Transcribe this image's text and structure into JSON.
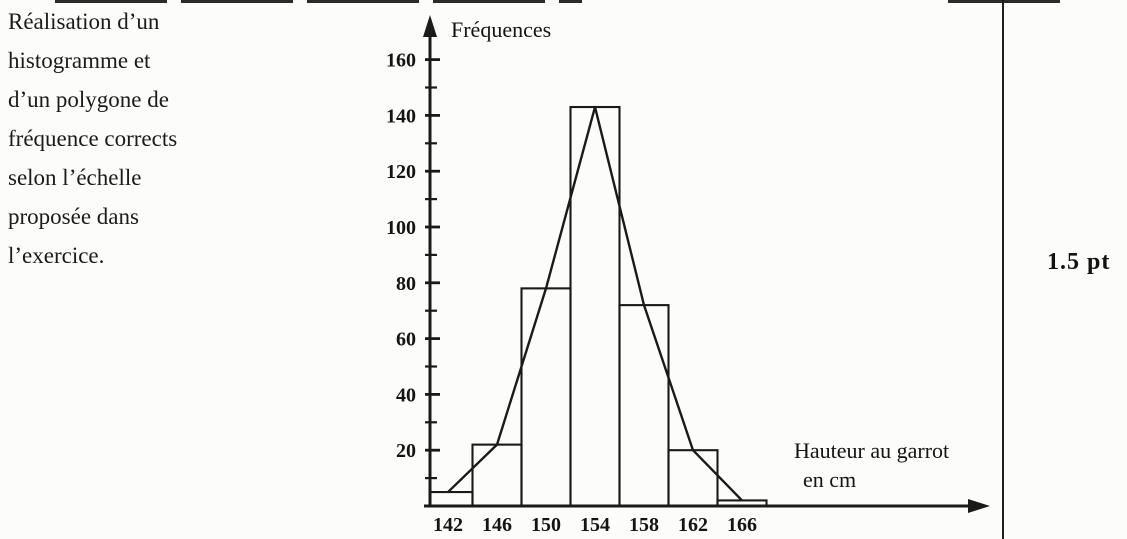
{
  "page": {
    "background": "#fcfcfa",
    "ink_color": "#1a1a1a"
  },
  "left_note": {
    "lines": [
      "Réalisation d’un",
      "histogramme et",
      "d’un polygone de",
      "fréquence corrects",
      "selon l’échelle",
      "proposée dans",
      "l’exercice."
    ]
  },
  "score": {
    "label": "1.5 pt"
  },
  "chart_data": {
    "type": "bar",
    "subtype": "histogram-with-frequency-polygon",
    "title": "",
    "ylabel": "Fréquences",
    "xlabel": "Hauteur au garrot en cm",
    "xlabel_lines": [
      "Hauteur au garrot",
      "en cm"
    ],
    "categories": [
      142,
      146,
      150,
      154,
      158,
      162,
      166
    ],
    "class_width": 4,
    "values": [
      5,
      22,
      78,
      143,
      72,
      20,
      2
    ],
    "polygon_points": [
      [
        142,
        5
      ],
      [
        146,
        22
      ],
      [
        150,
        78
      ],
      [
        154,
        143
      ],
      [
        158,
        72
      ],
      [
        162,
        20
      ],
      [
        166,
        2
      ]
    ],
    "y_tick_labels": [
      20,
      40,
      60,
      80,
      100,
      120,
      140,
      160
    ],
    "y_minor_tick_step": 10,
    "ylim": [
      0,
      170
    ],
    "xlim": [
      140,
      168
    ],
    "grid": false,
    "legend": "none",
    "ink_color": "#1a1a1a"
  }
}
